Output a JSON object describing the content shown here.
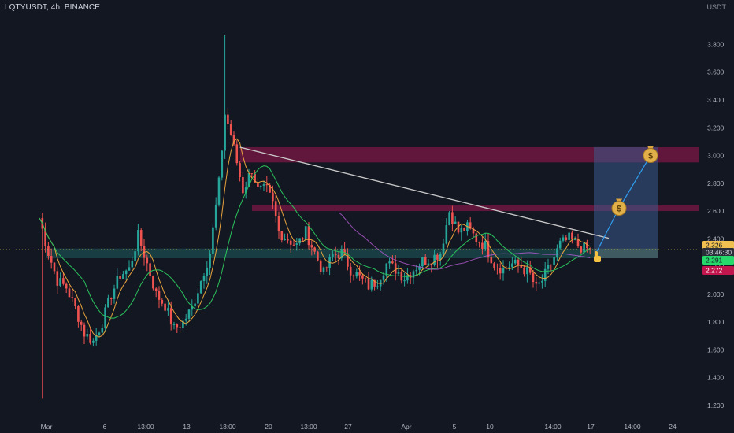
{
  "header": {
    "title": "LQTYUSDT, 4h, BINANCE"
  },
  "currency": "USDT",
  "chart_data": {
    "type": "candlestick",
    "title": "",
    "y_ticks": [
      "3.800",
      "3.600",
      "3.400",
      "3.200",
      "3.000",
      "2.800",
      "2.600",
      "2.400",
      "2.200",
      "2.000",
      "1.800",
      "1.600",
      "1.400",
      "1.200"
    ],
    "x_ticks": [
      "Mar",
      "6",
      "13:00",
      "13",
      "13:00",
      "20",
      "13:00",
      "27",
      "Apr",
      "5",
      "10",
      "14:00",
      "17",
      "14:00",
      "24"
    ],
    "ylim": [
      1.16,
      3.95
    ],
    "grid": false,
    "price_tags": [
      {
        "label": "2.326",
        "value": 2.326,
        "color": "#f0c050",
        "text_color": "#131722"
      },
      {
        "label": "03:46:30",
        "value": 2.31,
        "color": "#2a2e39",
        "text_color": "#d1d4dc"
      },
      {
        "label": "2.291",
        "value": 2.291,
        "color": "#26d96b",
        "text_color": "#131722"
      },
      {
        "label": "2.272",
        "value": 2.272,
        "color": "#c0164d",
        "text_color": "#ffffff"
      }
    ],
    "zones": [
      {
        "name": "upper-resistance",
        "y_range": [
          2.95,
          3.06
        ],
        "color": "#c2185b"
      },
      {
        "name": "mid-resistance",
        "y_range": [
          2.6,
          2.64
        ],
        "color": "#c2185b"
      },
      {
        "name": "support",
        "y_range": [
          2.26,
          2.33
        ],
        "color": "#26a69a"
      }
    ],
    "trendline": {
      "from": {
        "x_index": 67,
        "y": 3.06
      },
      "to": {
        "x_index": 185,
        "y": 2.37
      }
    },
    "projection": {
      "entry": 2.31,
      "target1": 2.62,
      "target2": 3.0,
      "target_box_range": [
        2.33,
        3.06
      ],
      "icons": [
        "money-bag",
        "money-bag",
        "thumbs-up"
      ]
    },
    "anchors": [
      [
        0,
        2.55
      ],
      [
        3,
        2.3
      ],
      [
        6,
        2.1
      ],
      [
        9,
        2.05
      ],
      [
        12,
        1.9
      ],
      [
        15,
        1.72
      ],
      [
        18,
        1.66
      ],
      [
        21,
        1.8
      ],
      [
        24,
        2.0
      ],
      [
        27,
        2.14
      ],
      [
        30,
        2.18
      ],
      [
        33,
        2.42
      ],
      [
        36,
        2.22
      ],
      [
        39,
        2.0
      ],
      [
        42,
        1.92
      ],
      [
        45,
        1.75
      ],
      [
        48,
        1.8
      ],
      [
        51,
        1.9
      ],
      [
        54,
        2.1
      ],
      [
        57,
        2.3
      ],
      [
        60,
        2.8
      ],
      [
        62,
        3.3
      ],
      [
        64,
        3.15
      ],
      [
        66,
        2.95
      ],
      [
        68,
        2.75
      ],
      [
        71,
        2.9
      ],
      [
        73,
        2.75
      ],
      [
        76,
        2.75
      ],
      [
        78,
        2.65
      ],
      [
        80,
        2.45
      ],
      [
        83,
        2.4
      ],
      [
        86,
        2.35
      ],
      [
        89,
        2.45
      ],
      [
        92,
        2.3
      ],
      [
        95,
        2.15
      ],
      [
        98,
        2.28
      ],
      [
        101,
        2.3
      ],
      [
        104,
        2.18
      ],
      [
        107,
        2.12
      ],
      [
        110,
        2.06
      ],
      [
        113,
        2.1
      ],
      [
        116,
        2.22
      ],
      [
        119,
        2.18
      ],
      [
        122,
        2.12
      ],
      [
        125,
        2.18
      ],
      [
        128,
        2.24
      ],
      [
        131,
        2.26
      ],
      [
        134,
        2.3
      ],
      [
        137,
        2.6
      ],
      [
        140,
        2.45
      ],
      [
        143,
        2.48
      ],
      [
        146,
        2.4
      ],
      [
        149,
        2.35
      ],
      [
        152,
        2.22
      ],
      [
        155,
        2.18
      ],
      [
        158,
        2.22
      ],
      [
        161,
        2.2
      ],
      [
        164,
        2.14
      ],
      [
        166,
        2.04
      ],
      [
        168,
        2.1
      ],
      [
        171,
        2.22
      ],
      [
        174,
        2.36
      ],
      [
        177,
        2.4
      ],
      [
        180,
        2.35
      ],
      [
        182,
        2.33
      ],
      [
        184,
        2.326
      ]
    ]
  },
  "colors": {
    "bg": "#131722",
    "up": "#26a69a",
    "down": "#ef5350",
    "ma_fast": "#e8a33d",
    "ma_slow": "#2bc25b",
    "ma_ref": "#b85bd6",
    "trend": "#c9c9c9",
    "target_box": "#3d5a8c"
  }
}
